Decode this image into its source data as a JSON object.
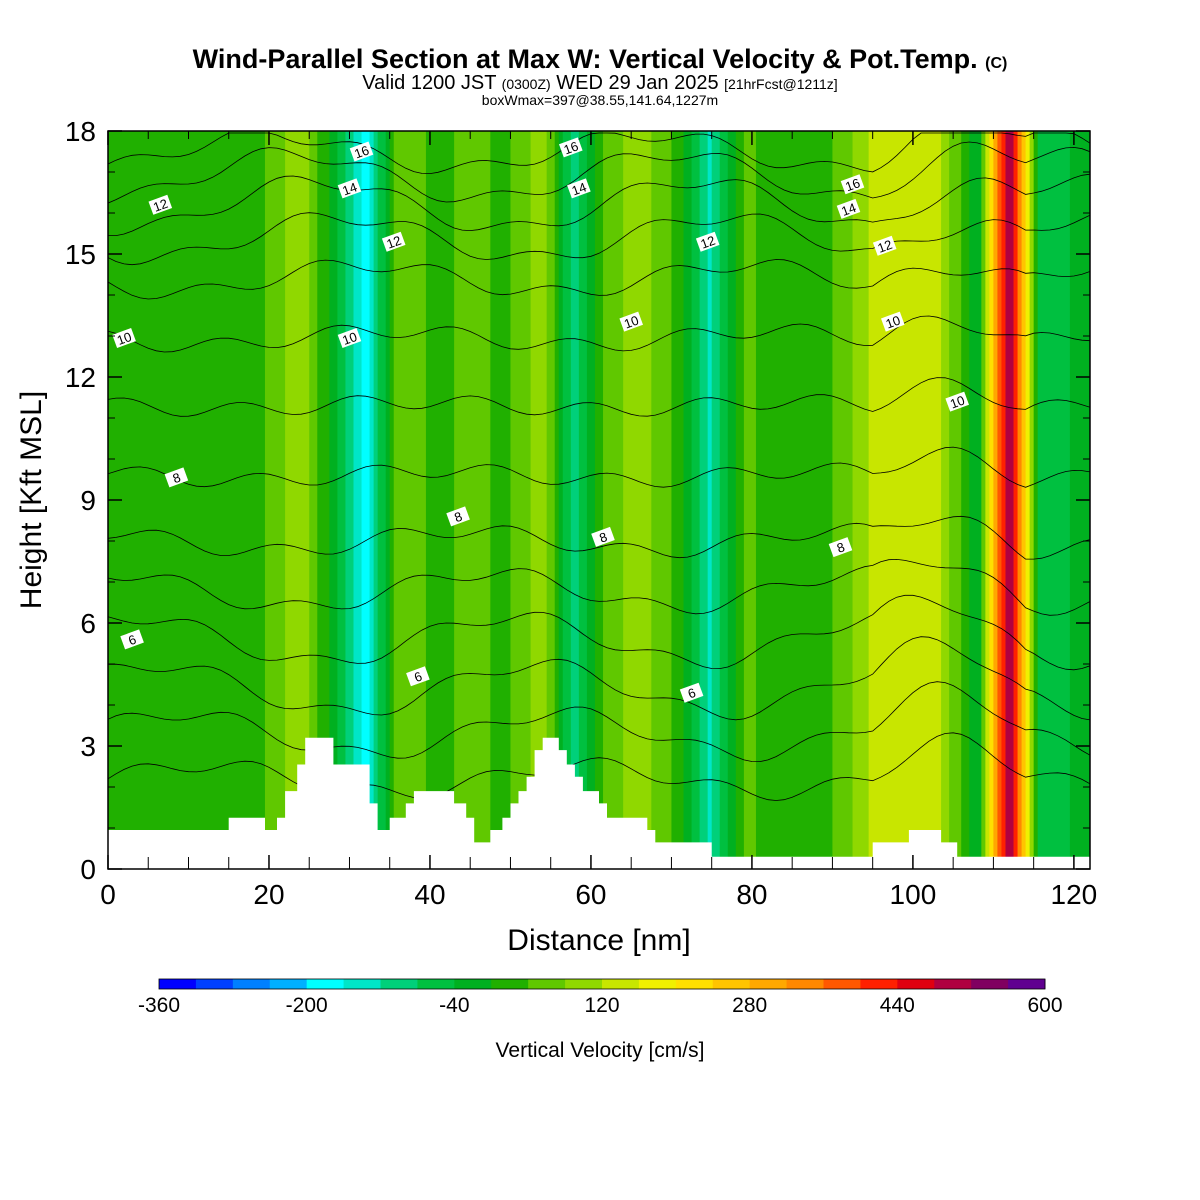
{
  "header": {
    "title_main": "Wind-Parallel Section at Max W: Vertical Velocity & Pot.Temp.",
    "title_copyright": "(C)",
    "valid_prefix": "Valid 1200 JST",
    "valid_utc": "(0300Z)",
    "valid_date": "WED 29 Jan 2025",
    "forecast_info": "[21hrFcst@1211z]",
    "box_info": "boxWmax=397@38.55,141.64,1227m"
  },
  "colors": {
    "terrain": "#ffffff",
    "contour": "#000000",
    "colorbar": [
      "#0000ff",
      "#0040ff",
      "#0080ff",
      "#00b0ff",
      "#00ffff",
      "#00e6c8",
      "#00d07a",
      "#00c040",
      "#00b020",
      "#20b000",
      "#60c800",
      "#90d800",
      "#c8e600",
      "#f0f000",
      "#ffe000",
      "#ffc400",
      "#ffa800",
      "#ff8800",
      "#ff5800",
      "#ff2000",
      "#e00010",
      "#b00040",
      "#800060",
      "#600090"
    ]
  },
  "chart_data": {
    "type": "heatmap",
    "xlabel": "Distance [nm]",
    "ylabel": "Height [Kft MSL]",
    "xlim": [
      0,
      122
    ],
    "ylim": [
      0,
      18
    ],
    "x_ticks": [
      "0",
      "20",
      "40",
      "60",
      "80",
      "100",
      "120"
    ],
    "y_ticks": [
      "0",
      "3",
      "6",
      "9",
      "12",
      "15",
      "18"
    ],
    "colorbar": {
      "label": "Vertical Velocity [cm/s]",
      "min": -360,
      "max": 600,
      "step": 40,
      "tick_labels": [
        "-360",
        "-200",
        "-40",
        "120",
        "280",
        "440",
        "600"
      ]
    },
    "vertical_velocity_columns": [
      {
        "x": 1,
        "w_cm_s": 20
      },
      {
        "x": 6,
        "w_cm_s": 10
      },
      {
        "x": 13,
        "w_cm_s": 40
      },
      {
        "x": 18,
        "w_cm_s": 20
      },
      {
        "x": 24,
        "w_cm_s": 110
      },
      {
        "x": 28,
        "w_cm_s": -20
      },
      {
        "x": 32,
        "w_cm_s": -190
      },
      {
        "x": 36,
        "w_cm_s": 70
      },
      {
        "x": 42,
        "w_cm_s": 20
      },
      {
        "x": 45,
        "w_cm_s": 80
      },
      {
        "x": 49,
        "w_cm_s": 20
      },
      {
        "x": 54,
        "w_cm_s": 110
      },
      {
        "x": 58,
        "w_cm_s": -110
      },
      {
        "x": 62,
        "w_cm_s": 60
      },
      {
        "x": 66,
        "w_cm_s": 100
      },
      {
        "x": 71,
        "w_cm_s": 20
      },
      {
        "x": 75,
        "w_cm_s": -130
      },
      {
        "x": 79,
        "w_cm_s": 50
      },
      {
        "x": 85,
        "w_cm_s": 10
      },
      {
        "x": 90,
        "w_cm_s": 40
      },
      {
        "x": 97,
        "w_cm_s": 160
      },
      {
        "x": 103,
        "w_cm_s": 140
      },
      {
        "x": 108,
        "w_cm_s": -40
      },
      {
        "x": 112,
        "w_cm_s": 550
      },
      {
        "x": 116,
        "w_cm_s": -80
      },
      {
        "x": 121,
        "w_cm_s": -20
      }
    ],
    "terrain": [
      {
        "x": 0,
        "z": 0.95
      },
      {
        "x": 15,
        "z": 0.95
      },
      {
        "x": 15,
        "z": 1.25
      },
      {
        "x": 19.5,
        "z": 1.25
      },
      {
        "x": 19.5,
        "z": 0.95
      },
      {
        "x": 21,
        "z": 0.95
      },
      {
        "x": 21,
        "z": 1.25
      },
      {
        "x": 22,
        "z": 1.25
      },
      {
        "x": 22,
        "z": 1.9
      },
      {
        "x": 23.5,
        "z": 1.9
      },
      {
        "x": 23.5,
        "z": 2.55
      },
      {
        "x": 24.5,
        "z": 2.55
      },
      {
        "x": 24.5,
        "z": 3.2
      },
      {
        "x": 28,
        "z": 3.2
      },
      {
        "x": 28,
        "z": 2.55
      },
      {
        "x": 32.5,
        "z": 2.55
      },
      {
        "x": 32.5,
        "z": 1.6
      },
      {
        "x": 33.5,
        "z": 1.6
      },
      {
        "x": 33.5,
        "z": 0.95
      },
      {
        "x": 35,
        "z": 0.95
      },
      {
        "x": 35,
        "z": 1.25
      },
      {
        "x": 37,
        "z": 1.25
      },
      {
        "x": 37,
        "z": 1.6
      },
      {
        "x": 38,
        "z": 1.6
      },
      {
        "x": 38,
        "z": 1.9
      },
      {
        "x": 43,
        "z": 1.9
      },
      {
        "x": 43,
        "z": 1.6
      },
      {
        "x": 44.5,
        "z": 1.6
      },
      {
        "x": 44.5,
        "z": 1.25
      },
      {
        "x": 45.5,
        "z": 1.25
      },
      {
        "x": 45.5,
        "z": 0.65
      },
      {
        "x": 47.5,
        "z": 0.65
      },
      {
        "x": 47.5,
        "z": 0.95
      },
      {
        "x": 49,
        "z": 0.95
      },
      {
        "x": 49,
        "z": 1.25
      },
      {
        "x": 50,
        "z": 1.25
      },
      {
        "x": 50,
        "z": 1.6
      },
      {
        "x": 51,
        "z": 1.6
      },
      {
        "x": 51,
        "z": 1.9
      },
      {
        "x": 52,
        "z": 1.9
      },
      {
        "x": 52,
        "z": 2.25
      },
      {
        "x": 53,
        "z": 2.25
      },
      {
        "x": 53,
        "z": 2.9
      },
      {
        "x": 54,
        "z": 2.9
      },
      {
        "x": 54,
        "z": 3.2
      },
      {
        "x": 56,
        "z": 3.2
      },
      {
        "x": 56,
        "z": 2.9
      },
      {
        "x": 57,
        "z": 2.9
      },
      {
        "x": 57,
        "z": 2.55
      },
      {
        "x": 58,
        "z": 2.55
      },
      {
        "x": 58,
        "z": 2.25
      },
      {
        "x": 59,
        "z": 2.25
      },
      {
        "x": 59,
        "z": 1.9
      },
      {
        "x": 61,
        "z": 1.9
      },
      {
        "x": 61,
        "z": 1.6
      },
      {
        "x": 62,
        "z": 1.6
      },
      {
        "x": 62,
        "z": 1.25
      },
      {
        "x": 67,
        "z": 1.25
      },
      {
        "x": 67,
        "z": 0.95
      },
      {
        "x": 68,
        "z": 0.95
      },
      {
        "x": 68,
        "z": 0.65
      },
      {
        "x": 75,
        "z": 0.65
      },
      {
        "x": 75,
        "z": 0.3
      },
      {
        "x": 95,
        "z": 0.3
      },
      {
        "x": 95,
        "z": 0.65
      },
      {
        "x": 99.5,
        "z": 0.65
      },
      {
        "x": 99.5,
        "z": 0.95
      },
      {
        "x": 103.5,
        "z": 0.95
      },
      {
        "x": 103.5,
        "z": 0.65
      },
      {
        "x": 105.5,
        "z": 0.65
      },
      {
        "x": 105.5,
        "z": 0.3
      },
      {
        "x": 122,
        "z": 0.3
      }
    ],
    "theta_labels": [
      {
        "text": "16",
        "x": 31.5,
        "y": 17.5
      },
      {
        "text": "14",
        "x": 30,
        "y": 16.6
      },
      {
        "text": "12",
        "x": 6.5,
        "y": 16.2
      },
      {
        "text": "12",
        "x": 35.5,
        "y": 15.3
      },
      {
        "text": "10",
        "x": 2,
        "y": 12.95
      },
      {
        "text": "10",
        "x": 30,
        "y": 12.95
      },
      {
        "text": "8",
        "x": 8.5,
        "y": 9.55
      },
      {
        "text": "8",
        "x": 43.5,
        "y": 8.6
      },
      {
        "text": "6",
        "x": 3,
        "y": 5.6
      },
      {
        "text": "6",
        "x": 38.5,
        "y": 4.7
      },
      {
        "text": "16",
        "x": 57.5,
        "y": 17.6
      },
      {
        "text": "14",
        "x": 58.5,
        "y": 16.6
      },
      {
        "text": "12",
        "x": 74.5,
        "y": 15.3
      },
      {
        "text": "10",
        "x": 65,
        "y": 13.35
      },
      {
        "text": "8",
        "x": 61.5,
        "y": 8.1
      },
      {
        "text": "6",
        "x": 72.5,
        "y": 4.3
      },
      {
        "text": "16",
        "x": 92.5,
        "y": 16.7
      },
      {
        "text": "14",
        "x": 92,
        "y": 16.1
      },
      {
        "text": "12",
        "x": 96.5,
        "y": 15.2
      },
      {
        "text": "10",
        "x": 97.5,
        "y": 13.35
      },
      {
        "text": "10",
        "x": 105.5,
        "y": 11.4
      },
      {
        "text": "8",
        "x": 91,
        "y": 7.85
      }
    ]
  }
}
